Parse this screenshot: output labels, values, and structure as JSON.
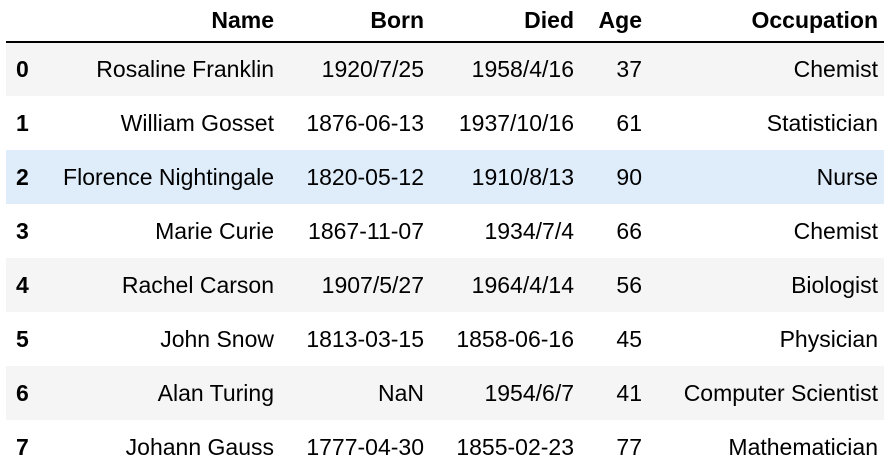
{
  "table": {
    "columns": [
      "",
      "Name",
      "Born",
      "Died",
      "Age",
      "Occupation"
    ],
    "highlight_row": 2,
    "rows": [
      {
        "index": "0",
        "name": "Rosaline Franklin",
        "born": "1920/7/25",
        "died": "1958/4/16",
        "age": "37",
        "occupation": "Chemist"
      },
      {
        "index": "1",
        "name": "William Gosset",
        "born": "1876-06-13",
        "died": "1937/10/16",
        "age": "61",
        "occupation": "Statistician"
      },
      {
        "index": "2",
        "name": "Florence Nightingale",
        "born": "1820-05-12",
        "died": "1910/8/13",
        "age": "90",
        "occupation": "Nurse"
      },
      {
        "index": "3",
        "name": "Marie Curie",
        "born": "1867-11-07",
        "died": "1934/7/4",
        "age": "66",
        "occupation": "Chemist"
      },
      {
        "index": "4",
        "name": "Rachel Carson",
        "born": "1907/5/27",
        "died": "1964/4/14",
        "age": "56",
        "occupation": "Biologist"
      },
      {
        "index": "5",
        "name": "John Snow",
        "born": "1813-03-15",
        "died": "1858-06-16",
        "age": "45",
        "occupation": "Physician"
      },
      {
        "index": "6",
        "name": "Alan Turing",
        "born": "NaN",
        "died": "1954/6/7",
        "age": "41",
        "occupation": "Computer Scientist"
      },
      {
        "index": "7",
        "name": "Johann Gauss",
        "born": "1777-04-30",
        "died": "1855-02-23",
        "age": "77",
        "occupation": "Mathematician"
      }
    ]
  },
  "colors": {
    "row_stripe": "#f5f5f5",
    "row_hover": "#dfedfb",
    "header_rule": "#000000"
  }
}
